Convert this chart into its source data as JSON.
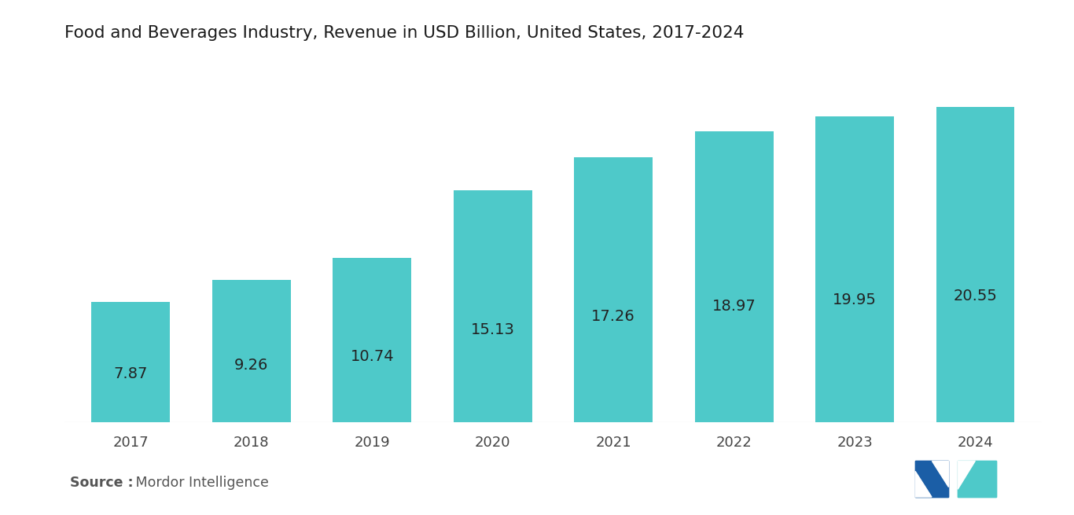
{
  "title": "Food and Beverages Industry, Revenue in USD Billion, United States, 2017-2024",
  "categories": [
    "2017",
    "2018",
    "2019",
    "2020",
    "2021",
    "2022",
    "2023",
    "2024"
  ],
  "values": [
    7.87,
    9.26,
    10.74,
    15.13,
    17.26,
    18.97,
    19.95,
    20.55
  ],
  "bar_color": "#4EC9C9",
  "background_color": "#ffffff",
  "label_color": "#222222",
  "title_fontsize": 15.5,
  "label_fontsize": 14,
  "tick_fontsize": 13,
  "source_bold": "Source :",
  "source_normal": " Mordor Intelligence",
  "source_color": "#555555",
  "ylim": [
    0,
    23.5
  ],
  "logo_dark_blue": "#1B5EA6",
  "logo_teal": "#4EC9C9"
}
